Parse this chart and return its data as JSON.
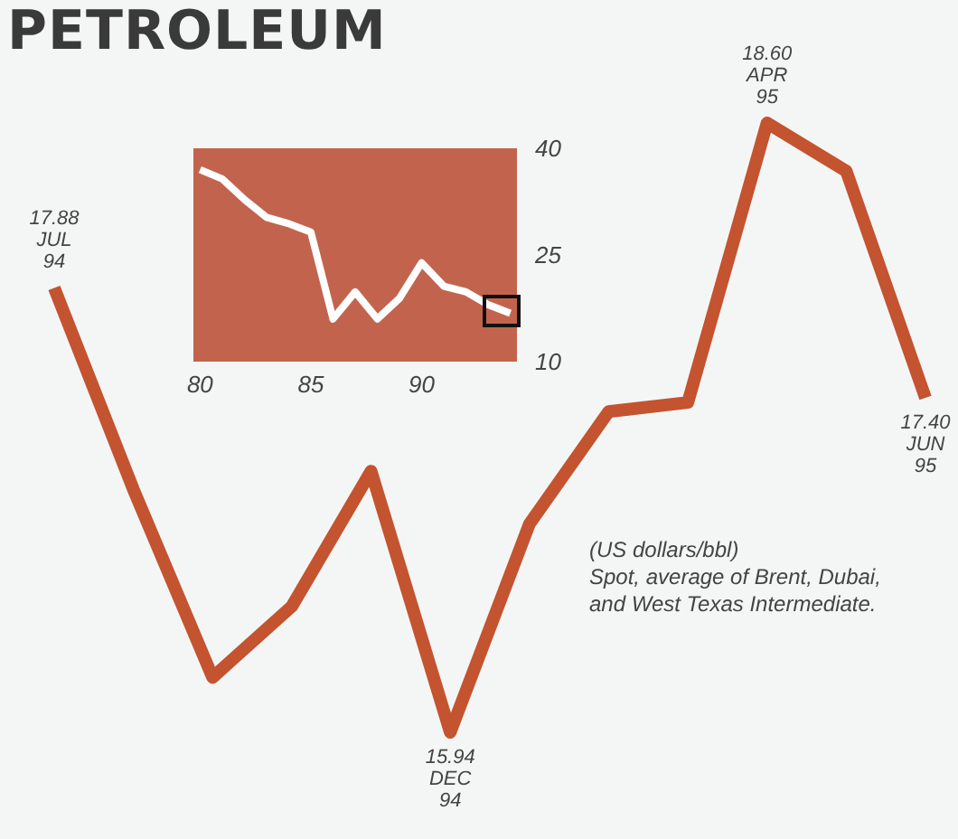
{
  "chart_data": [
    {
      "type": "line",
      "title": "PETROLEUM",
      "categories": [
        null,
        null,
        null,
        null,
        null,
        null,
        null,
        null,
        null,
        null,
        null,
        null
      ],
      "series": [
        {
          "color": "#c4532f",
          "values": [
            17.88,
            17.0,
            16.18,
            16.49,
            17.08,
            15.94,
            16.85,
            17.34,
            17.38,
            18.6,
            18.39,
            17.4
          ],
          "value_labels": [
            "17.88\nJUL\n94",
            null,
            null,
            null,
            null,
            "15.94\nDEC\n94",
            null,
            null,
            null,
            "18.60\nAPR\n95",
            null,
            "17.40\nJUN\n95"
          ]
        }
      ],
      "annotations": [
        "(US dollars/bbl)",
        "Spot, average of Brent, Dubai, and West Texas Intermediate."
      ],
      "marker": "none",
      "grid": false
    },
    {
      "type": "line",
      "x": [
        80,
        81,
        82,
        83,
        84,
        85,
        86,
        87,
        88,
        89,
        90,
        91,
        92,
        93,
        94
      ],
      "series": [
        {
          "color": "#ffffff",
          "values": [
            37.0,
            35.7,
            32.8,
            30.3,
            29.4,
            28.2,
            16.0,
            19.8,
            16.0,
            18.9,
            23.9,
            20.6,
            19.8,
            18.0,
            16.8
          ]
        }
      ],
      "xlim": [
        79.7,
        94.3
      ],
      "xticks": [
        80,
        85,
        90
      ],
      "ylim": [
        10,
        40
      ],
      "yticks": [
        10,
        25,
        40
      ],
      "marker": "none",
      "grid": false
    }
  ]
}
